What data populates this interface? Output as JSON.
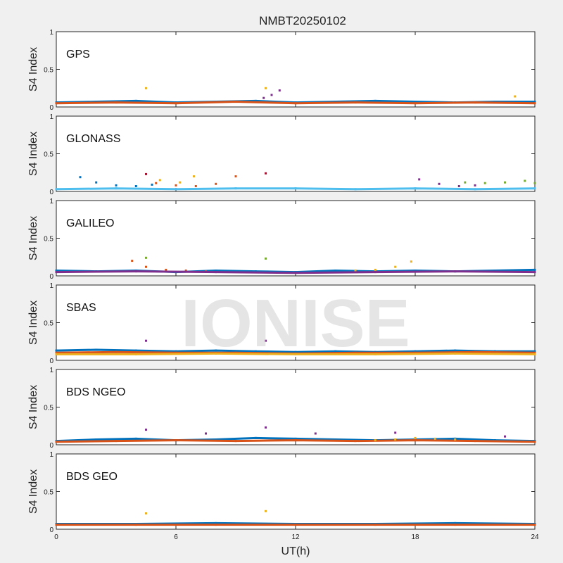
{
  "title": "NMBT20250102",
  "watermark": "IONISE",
  "colors": {
    "figure_bg": "#f0f0f0",
    "axes_bg": "#ffffff",
    "series": [
      "#0072BD",
      "#D95319",
      "#EDB120",
      "#7E2F8E",
      "#77AC30",
      "#4DBEEE",
      "#A2142F"
    ]
  },
  "chart_data": [
    {
      "type": "scatter",
      "label": "GPS",
      "ylabel": "S4 Index",
      "xlabel": "",
      "xlim": [
        0,
        24
      ],
      "ylim": [
        0,
        1
      ],
      "yticks": [
        0,
        0.5,
        1
      ],
      "xticks": [
        0,
        6,
        12,
        18,
        24
      ],
      "grid": false,
      "series": [
        {
          "x": [
            0,
            2,
            4,
            6,
            8,
            10,
            12,
            14,
            16,
            18,
            20,
            22,
            24
          ],
          "y": [
            0.06,
            0.07,
            0.08,
            0.06,
            0.07,
            0.08,
            0.06,
            0.07,
            0.08,
            0.07,
            0.06,
            0.07,
            0.07
          ]
        },
        {
          "x": [
            0,
            3,
            6,
            9,
            12,
            15,
            18,
            21,
            24
          ],
          "y": [
            0.05,
            0.06,
            0.05,
            0.07,
            0.05,
            0.06,
            0.05,
            0.06,
            0.05
          ]
        },
        {
          "x": [
            4.5,
            10.5,
            23.0
          ],
          "y": [
            0.25,
            0.25,
            0.14
          ]
        },
        {
          "x": [
            10.4,
            10.8,
            11.2
          ],
          "y": [
            0.12,
            0.16,
            0.22
          ]
        }
      ]
    },
    {
      "type": "scatter",
      "label": "GLONASS",
      "ylabel": "S4 Index",
      "xlabel": "",
      "xlim": [
        0,
        24
      ],
      "ylim": [
        0,
        1
      ],
      "yticks": [
        0,
        0.5,
        1
      ],
      "xticks": [
        0,
        6,
        12,
        18,
        24
      ],
      "grid": false,
      "series": [
        {
          "x": [
            1.2,
            2.0,
            3.0,
            4.0,
            4.8
          ],
          "y": [
            0.19,
            0.12,
            0.08,
            0.07,
            0.09
          ]
        },
        {
          "x": [
            5.0,
            6.0,
            7.0,
            8.0,
            9.0
          ],
          "y": [
            0.11,
            0.08,
            0.07,
            0.1,
            0.2
          ]
        },
        {
          "x": [
            5.2,
            6.2,
            6.9
          ],
          "y": [
            0.15,
            0.12,
            0.2
          ]
        },
        {
          "x": [
            18.2,
            19.2,
            20.2,
            21.0
          ],
          "y": [
            0.16,
            0.1,
            0.07,
            0.08
          ]
        },
        {
          "x": [
            20.5,
            21.5,
            22.5,
            23.5,
            24.0
          ],
          "y": [
            0.12,
            0.11,
            0.12,
            0.14,
            0.11
          ]
        },
        {
          "x": [
            0,
            3,
            6,
            9,
            12,
            15,
            18,
            21,
            24
          ],
          "y": [
            0.03,
            0.04,
            0.03,
            0.04,
            0.04,
            0.03,
            0.04,
            0.03,
            0.04
          ]
        },
        {
          "x": [
            4.5,
            10.5
          ],
          "y": [
            0.23,
            0.24
          ]
        }
      ]
    },
    {
      "type": "scatter",
      "label": "GALILEO",
      "ylabel": "S4 Index",
      "xlabel": "",
      "xlim": [
        0,
        24
      ],
      "ylim": [
        0,
        1
      ],
      "yticks": [
        0,
        0.5,
        1
      ],
      "xticks": [
        0,
        6,
        12,
        18,
        24
      ],
      "grid": false,
      "series": [
        {
          "x": [
            0,
            2,
            4,
            6,
            8,
            10,
            12,
            14,
            16,
            18,
            20,
            22,
            24
          ],
          "y": [
            0.07,
            0.06,
            0.07,
            0.05,
            0.07,
            0.06,
            0.05,
            0.07,
            0.06,
            0.07,
            0.06,
            0.07,
            0.08
          ]
        },
        {
          "x": [
            3.8,
            4.5,
            5.5,
            6.5,
            7.5
          ],
          "y": [
            0.2,
            0.12,
            0.08,
            0.07,
            0.06
          ]
        },
        {
          "x": [
            15.0,
            16.0,
            17.0,
            17.8
          ],
          "y": [
            0.07,
            0.08,
            0.12,
            0.19
          ]
        },
        {
          "x": [
            0,
            4,
            8,
            12,
            16,
            20,
            24
          ],
          "y": [
            0.05,
            0.06,
            0.05,
            0.04,
            0.05,
            0.06,
            0.05
          ]
        },
        {
          "x": [
            4.5,
            10.5
          ],
          "y": [
            0.24,
            0.23
          ]
        }
      ]
    },
    {
      "type": "scatter",
      "label": "SBAS",
      "ylabel": "S4 Index",
      "xlabel": "",
      "xlim": [
        0,
        24
      ],
      "ylim": [
        0,
        1
      ],
      "yticks": [
        0,
        0.5,
        1
      ],
      "xticks": [
        0,
        6,
        12,
        18,
        24
      ],
      "grid": false,
      "series": [
        {
          "x": [
            0,
            2,
            4,
            6,
            8,
            10,
            12,
            14,
            16,
            18,
            20,
            22,
            24
          ],
          "y": [
            0.13,
            0.14,
            0.13,
            0.12,
            0.13,
            0.12,
            0.11,
            0.12,
            0.11,
            0.12,
            0.13,
            0.12,
            0.12
          ]
        },
        {
          "x": [
            0,
            3,
            6,
            9,
            12,
            15,
            18,
            21,
            24
          ],
          "y": [
            0.1,
            0.11,
            0.1,
            0.1,
            0.09,
            0.1,
            0.1,
            0.11,
            0.1
          ]
        },
        {
          "x": [
            0,
            4,
            8,
            12,
            16,
            20,
            24
          ],
          "y": [
            0.08,
            0.08,
            0.09,
            0.08,
            0.08,
            0.09,
            0.08
          ]
        },
        {
          "x": [
            4.5,
            10.5
          ],
          "y": [
            0.26,
            0.26
          ]
        }
      ]
    },
    {
      "type": "scatter",
      "label": "BDS NGEO",
      "ylabel": "S4 Index",
      "xlabel": "",
      "xlim": [
        0,
        24
      ],
      "ylim": [
        0,
        1
      ],
      "yticks": [
        0,
        0.5,
        1
      ],
      "xticks": [
        0,
        6,
        12,
        18,
        24
      ],
      "grid": false,
      "series": [
        {
          "x": [
            0,
            2,
            4,
            6,
            8,
            10,
            12,
            14,
            16,
            18,
            20,
            22,
            24
          ],
          "y": [
            0.05,
            0.07,
            0.08,
            0.06,
            0.07,
            0.09,
            0.08,
            0.07,
            0.06,
            0.07,
            0.08,
            0.06,
            0.05
          ]
        },
        {
          "x": [
            0,
            3,
            6,
            9,
            12,
            15,
            18,
            21,
            24
          ],
          "y": [
            0.04,
            0.05,
            0.06,
            0.05,
            0.06,
            0.05,
            0.06,
            0.05,
            0.04
          ]
        },
        {
          "x": [
            16,
            17,
            18,
            19,
            20
          ],
          "y": [
            0.06,
            0.07,
            0.09,
            0.08,
            0.07
          ]
        },
        {
          "x": [
            4.5,
            7.5,
            10.5,
            13.0,
            17.0,
            22.5
          ],
          "y": [
            0.2,
            0.15,
            0.23,
            0.15,
            0.16,
            0.11
          ]
        }
      ]
    },
    {
      "type": "scatter",
      "label": "BDS GEO",
      "ylabel": "S4 Index",
      "xlabel": "UT(h)",
      "xlim": [
        0,
        24
      ],
      "ylim": [
        0,
        1
      ],
      "yticks": [
        0,
        0.5,
        1
      ],
      "xticks": [
        0,
        6,
        12,
        18,
        24
      ],
      "grid": false,
      "series": [
        {
          "x": [
            0,
            4,
            8,
            12,
            16,
            20,
            24
          ],
          "y": [
            0.07,
            0.07,
            0.08,
            0.07,
            0.07,
            0.08,
            0.07
          ]
        },
        {
          "x": [
            0,
            4,
            8,
            12,
            16,
            20,
            24
          ],
          "y": [
            0.06,
            0.06,
            0.06,
            0.06,
            0.06,
            0.06,
            0.06
          ]
        },
        {
          "x": [
            4.5,
            10.5
          ],
          "y": [
            0.21,
            0.24
          ]
        }
      ]
    }
  ]
}
